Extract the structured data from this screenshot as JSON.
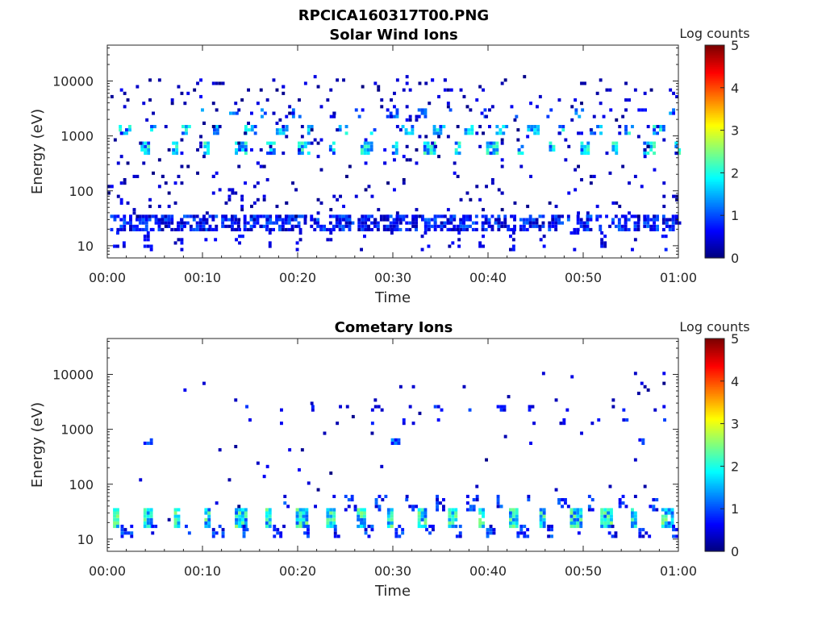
{
  "figure": {
    "title": "RPCICA160317T00.PNG"
  },
  "colorscale": {
    "stops": [
      "#00007f",
      "#0000ff",
      "#007fff",
      "#00ffff",
      "#7fff7f",
      "#ffff00",
      "#ff7f00",
      "#ff0000",
      "#7f0000"
    ]
  },
  "chart_data": [
    {
      "type": "heatmap",
      "title": "Solar Wind Ions",
      "xlabel": "Time",
      "ylabel": "Energy (eV)",
      "xticks": [
        "00:00",
        "00:10",
        "00:20",
        "00:30",
        "00:40",
        "00:50",
        "01:00"
      ],
      "xlim_minutes": [
        0,
        60
      ],
      "yscale": "log",
      "yticks": [
        "10",
        "100",
        "1000",
        "10000"
      ],
      "ylim": [
        6,
        45000
      ],
      "colorbar": {
        "label": "Log counts",
        "ticks": [
          "0",
          "1",
          "2",
          "3",
          "4",
          "5"
        ],
        "range": [
          0,
          5
        ]
      },
      "bands": [
        {
          "e_lo": 20,
          "e_hi": 34,
          "start": 0.3,
          "step": 1.0,
          "prob": 0.6,
          "vmin": 0.2,
          "vmax": 1.2
        },
        {
          "e_lo": 9,
          "e_hi": 20,
          "start": 0.6,
          "step": 3.2,
          "prob": 0.25,
          "vmin": 0.2,
          "vmax": 0.8
        },
        {
          "e_lo": 500,
          "e_hi": 700,
          "start": 3.5,
          "step": 3.3,
          "prob": 0.8,
          "vmin": 0.8,
          "vmax": 2.3
        },
        {
          "e_lo": 1100,
          "e_hi": 1400,
          "start": 1.2,
          "step": 3.3,
          "prob": 0.7,
          "vmin": 0.8,
          "vmax": 2.2
        },
        {
          "e_lo": 2300,
          "e_hi": 2900,
          "start": 9.5,
          "step": 3.3,
          "prob": 0.4,
          "vmin": 0.5,
          "vmax": 1.5
        }
      ],
      "scatter_density": 0.035
    },
    {
      "type": "heatmap",
      "title": "Cometary Ions",
      "xlabel": "Time",
      "ylabel": "Energy (eV)",
      "xticks": [
        "00:00",
        "00:10",
        "00:20",
        "00:30",
        "00:40",
        "00:50",
        "01:00"
      ],
      "xlim_minutes": [
        0,
        60
      ],
      "yscale": "log",
      "yticks": [
        "10",
        "100",
        "1000",
        "10000"
      ],
      "ylim": [
        6,
        45000
      ],
      "colorbar": {
        "label": "Log counts",
        "ticks": [
          "0",
          "1",
          "2",
          "3",
          "4",
          "5"
        ],
        "range": [
          0,
          5
        ]
      },
      "bands": [
        {
          "e_lo": 17,
          "e_hi": 34,
          "start": 0.6,
          "step": 3.2,
          "prob": 0.95,
          "vmin": 1.0,
          "vmax": 2.6
        },
        {
          "e_lo": 12,
          "e_hi": 17,
          "start": 1.4,
          "step": 3.2,
          "prob": 0.5,
          "vmin": 0.3,
          "vmax": 1.2
        },
        {
          "e_lo": 35,
          "e_hi": 60,
          "start": 18.5,
          "step": 3.2,
          "prob": 0.35,
          "vmin": 0.3,
          "vmax": 1.2
        },
        {
          "e_lo": 550,
          "e_hi": 650,
          "start": 3.8,
          "step": 26,
          "prob": 0.6,
          "vmin": 0.6,
          "vmax": 1.4
        },
        {
          "e_lo": 2300,
          "e_hi": 2700,
          "start": 14.5,
          "step": 3.3,
          "prob": 0.25,
          "vmin": 0.3,
          "vmax": 1.0
        },
        {
          "e_lo": 1200,
          "e_hi": 1400,
          "start": 14.5,
          "step": 3.3,
          "prob": 0.25,
          "vmin": 0.3,
          "vmax": 1.0
        }
      ],
      "scatter_density": 0.005
    }
  ]
}
